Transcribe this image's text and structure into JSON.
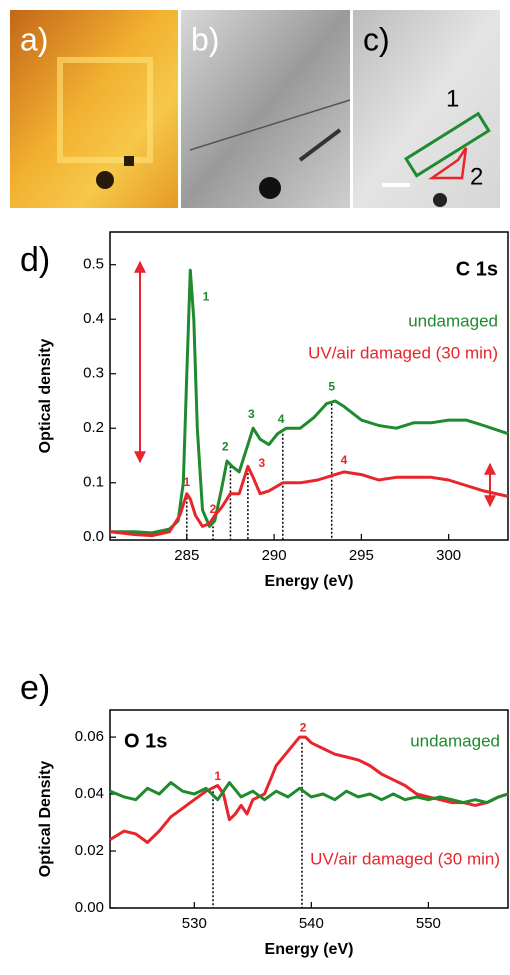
{
  "panels": [
    {
      "label": "a)"
    },
    {
      "label": "b)"
    },
    {
      "label": "c)",
      "annotations": [
        "1",
        "2"
      ]
    }
  ],
  "chart_data": [
    {
      "type": "line",
      "panel_label": "d)",
      "title": "C 1s",
      "xlabel": "Energy (eV)",
      "ylabel": "Optical density",
      "xlim": [
        280.6,
        303.4
      ],
      "ylim": [
        -0.005,
        0.56
      ],
      "xticks": [
        285,
        290,
        295,
        300
      ],
      "yticks": [
        {
          "value": 0,
          "label": "0.0"
        },
        0.1,
        0.2,
        0.3,
        0.4,
        0.5
      ],
      "series": [
        {
          "name": "undamaged",
          "color": "#1f8a2e",
          "x": [
            280.6,
            282,
            283,
            284,
            284.5,
            284.8,
            285.0,
            285.2,
            285.4,
            285.6,
            285.9,
            286.3,
            286.6,
            287.0,
            287.3,
            287.6,
            288.0,
            288.5,
            288.8,
            289.2,
            289.7,
            290.2,
            290.7,
            291.5,
            292.3,
            293,
            293.5,
            294,
            295,
            296,
            297,
            298,
            299,
            300,
            301,
            302,
            303.4
          ],
          "values": [
            0.01,
            0.01,
            0.008,
            0.015,
            0.03,
            0.1,
            0.3,
            0.49,
            0.4,
            0.2,
            0.05,
            0.02,
            0.03,
            0.09,
            0.14,
            0.13,
            0.12,
            0.17,
            0.2,
            0.18,
            0.17,
            0.19,
            0.2,
            0.2,
            0.22,
            0.245,
            0.25,
            0.24,
            0.215,
            0.205,
            0.2,
            0.21,
            0.21,
            0.215,
            0.215,
            0.205,
            0.19
          ]
        },
        {
          "name": "UV/air damaged (30 min)",
          "color": "#e8252a",
          "x": [
            280.6,
            282,
            283,
            284,
            284.6,
            285.0,
            285.2,
            285.5,
            285.9,
            286.3,
            286.6,
            287.0,
            287.5,
            288.0,
            288.5,
            288.8,
            289.2,
            289.7,
            290.5,
            291.5,
            292.5,
            293.5,
            294,
            295,
            296,
            297,
            298,
            299,
            300,
            301,
            302,
            303.4
          ],
          "values": [
            0.01,
            0.005,
            0.003,
            0.01,
            0.04,
            0.08,
            0.07,
            0.04,
            0.02,
            0.025,
            0.04,
            0.055,
            0.08,
            0.08,
            0.13,
            0.11,
            0.08,
            0.085,
            0.1,
            0.1,
            0.105,
            0.115,
            0.12,
            0.115,
            0.105,
            0.11,
            0.11,
            0.11,
            0.105,
            0.095,
            0.085,
            0.075
          ]
        }
      ],
      "vlines": [
        {
          "x": 285.0,
          "y": 0.08
        },
        {
          "x": 286.5,
          "y": 0.035
        },
        {
          "x": 287.5,
          "y": 0.13
        },
        {
          "x": 288.5,
          "y": 0.125
        },
        {
          "x": 290.5,
          "y": 0.19
        },
        {
          "x": 293.3,
          "y": 0.245
        }
      ],
      "annotations": [
        {
          "text": "1",
          "x": 286.1,
          "y": 0.44,
          "color": "#1f8a2e"
        },
        {
          "text": "2",
          "x": 287.2,
          "y": 0.165,
          "color": "#1f8a2e"
        },
        {
          "text": "3",
          "x": 288.7,
          "y": 0.225,
          "color": "#1f8a2e"
        },
        {
          "text": "4",
          "x": 290.4,
          "y": 0.215,
          "color": "#1f8a2e"
        },
        {
          "text": "5",
          "x": 293.3,
          "y": 0.275,
          "color": "#1f8a2e"
        },
        {
          "text": "1",
          "x": 285.0,
          "y": 0.1,
          "color": "#e8252a"
        },
        {
          "text": "2",
          "x": 286.5,
          "y": 0.05,
          "color": "#e8252a"
        },
        {
          "text": "3",
          "x": 289.3,
          "y": 0.135,
          "color": "#e8252a"
        },
        {
          "text": "4",
          "x": 294.0,
          "y": 0.14,
          "color": "#e8252a"
        }
      ]
    },
    {
      "type": "line",
      "panel_label": "e)",
      "title": "O 1s",
      "xlabel": "Energy (eV)",
      "ylabel": "Optical Density",
      "xlim": [
        522.8,
        556.8
      ],
      "ylim": [
        0,
        0.0695
      ],
      "xticks": [
        530,
        540,
        550
      ],
      "yticks": [
        {
          "value": 0,
          "label": "0.00"
        },
        0.02,
        0.04,
        0.06
      ],
      "series": [
        {
          "name": "UV/air damaged (30 min)",
          "color": "#e8252a",
          "x": [
            522.8,
            524,
            525,
            526,
            527,
            528,
            529,
            530,
            531,
            532,
            532.5,
            533,
            533.5,
            534,
            534.5,
            535,
            536,
            536.5,
            537,
            538,
            539,
            539.5,
            540,
            541,
            542,
            543,
            544,
            545,
            546,
            547,
            548,
            549,
            550,
            551,
            552,
            553,
            554,
            555,
            556,
            556.8
          ],
          "values": [
            0.024,
            0.027,
            0.026,
            0.023,
            0.027,
            0.032,
            0.035,
            0.038,
            0.041,
            0.043,
            0.04,
            0.031,
            0.033,
            0.036,
            0.033,
            0.038,
            0.04,
            0.045,
            0.05,
            0.055,
            0.06,
            0.06,
            0.058,
            0.056,
            0.054,
            0.053,
            0.052,
            0.05,
            0.047,
            0.045,
            0.043,
            0.04,
            0.039,
            0.038,
            0.037,
            0.037,
            0.036,
            0.037,
            0.039,
            0.04
          ]
        },
        {
          "name": "undamaged",
          "color": "#1f8a2e",
          "x": [
            522.8,
            524,
            525,
            526,
            527,
            528,
            529,
            530,
            531,
            532,
            533,
            534,
            535,
            536,
            537,
            538,
            539,
            540,
            541,
            542,
            543,
            544,
            545,
            546,
            547,
            548,
            549,
            550,
            551,
            552,
            553,
            554,
            555,
            556,
            556.8
          ],
          "values": [
            0.041,
            0.039,
            0.038,
            0.042,
            0.04,
            0.044,
            0.041,
            0.04,
            0.042,
            0.038,
            0.044,
            0.039,
            0.041,
            0.038,
            0.041,
            0.039,
            0.042,
            0.039,
            0.04,
            0.038,
            0.041,
            0.039,
            0.04,
            0.038,
            0.04,
            0.038,
            0.039,
            0.038,
            0.039,
            0.038,
            0.037,
            0.038,
            0.037,
            0.039,
            0.04
          ]
        }
      ],
      "vlines": [
        {
          "x": 531.6,
          "y": 0.041
        },
        {
          "x": 539.2,
          "y": 0.058
        }
      ],
      "annotations": [
        {
          "text": "1",
          "x": 532.0,
          "y": 0.046,
          "color": "#e8252a"
        },
        {
          "text": "2",
          "x": 539.3,
          "y": 0.063,
          "color": "#e8252a"
        }
      ]
    }
  ]
}
